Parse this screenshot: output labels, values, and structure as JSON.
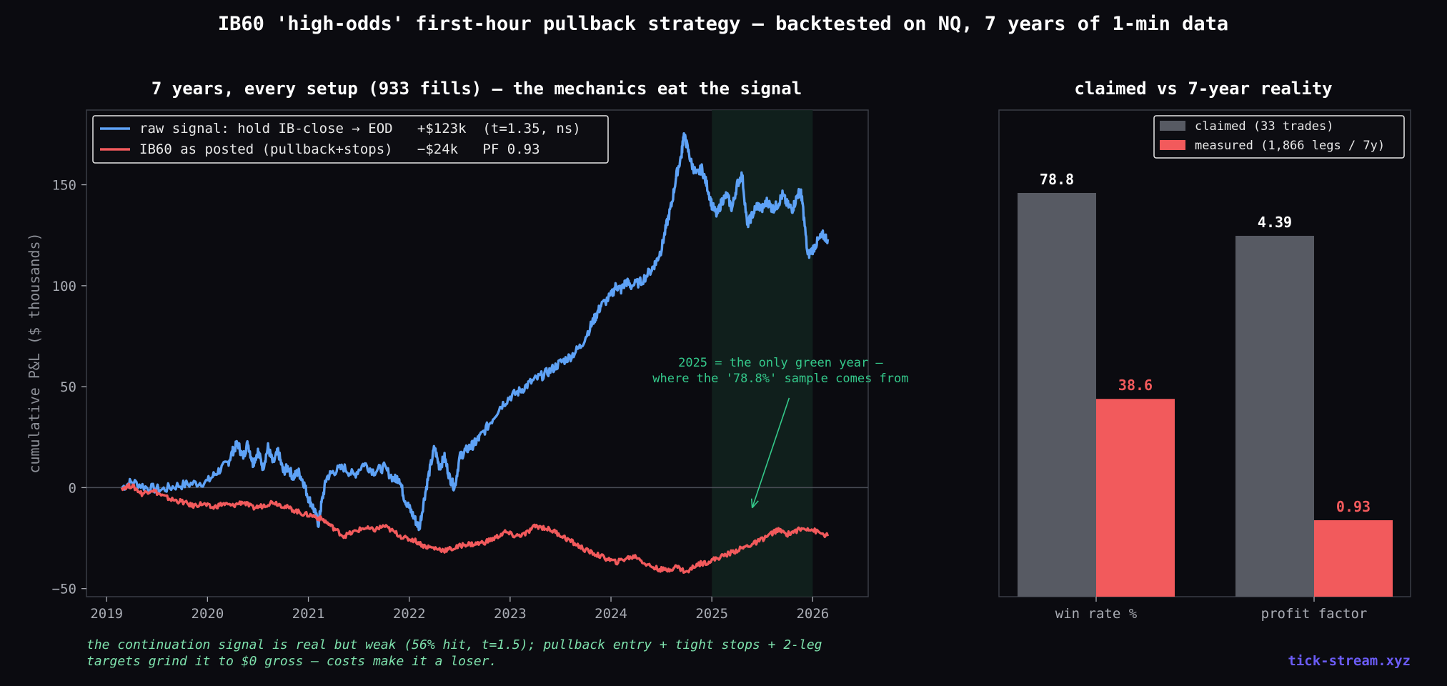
{
  "suptitle": "IB60 'high-odds' first-hour pullback strategy — backtested on NQ, 7 years of 1-min data",
  "footnote": {
    "line1": "the continuation signal is real but weak (56% hit, t=1.5); pullback entry + tight stops + 2-leg",
    "line2": "targets grind it to $0 gross — costs make it a loser."
  },
  "brand": "tick-stream.xyz",
  "chart_data": [
    {
      "type": "line",
      "title": "7 years, every setup (933 fills) — the mechanics eat the signal",
      "ylabel": "cumulative P&L ($ thousands)",
      "xlim": [
        2018.8,
        2026.55
      ],
      "ylim": [
        -54,
        187
      ],
      "xticks": [
        2019,
        2020,
        2021,
        2022,
        2023,
        2024,
        2025,
        2026
      ],
      "yticks": [
        -50,
        0,
        50,
        100,
        150
      ],
      "zero_line": true,
      "legend_position": "upper-left",
      "highlight_span": {
        "x": [
          2025.0,
          2026.0
        ],
        "color": "#12231e"
      },
      "annotation": {
        "lines": [
          "2025 = the only green year —",
          "where the '78.8%' sample comes from"
        ],
        "text_at": [
          2024.3,
          60
        ],
        "arrow_to": [
          2025.4,
          -10
        ]
      },
      "series": [
        {
          "name": "raw signal: hold IB-close → EOD   +$123k  (t=1.35, ns)",
          "color": "#5ea2f6",
          "x": [
            2019.15,
            2019.25,
            2019.4,
            2019.55,
            2019.7,
            2019.85,
            2020.0,
            2020.1,
            2020.2,
            2020.25,
            2020.3,
            2020.35,
            2020.4,
            2020.45,
            2020.5,
            2020.55,
            2020.6,
            2020.65,
            2020.7,
            2020.75,
            2020.8,
            2020.85,
            2020.9,
            2020.95,
            2021.0,
            2021.05,
            2021.1,
            2021.13,
            2021.18,
            2021.25,
            2021.35,
            2021.45,
            2021.55,
            2021.65,
            2021.75,
            2021.85,
            2021.9,
            2021.95,
            2022.0,
            2022.05,
            2022.1,
            2022.15,
            2022.2,
            2022.25,
            2022.3,
            2022.35,
            2022.4,
            2022.45,
            2022.5,
            2022.55,
            2022.6,
            2022.65,
            2022.7,
            2022.8,
            2022.9,
            2023.0,
            2023.1,
            2023.2,
            2023.3,
            2023.4,
            2023.5,
            2023.6,
            2023.7,
            2023.8,
            2023.85,
            2023.9,
            2024.0,
            2024.05,
            2024.1,
            2024.15,
            2024.2,
            2024.3,
            2024.4,
            2024.45,
            2024.5,
            2024.55,
            2024.6,
            2024.65,
            2024.7,
            2024.72,
            2024.75,
            2024.8,
            2024.85,
            2024.9,
            2024.95,
            2025.0,
            2025.05,
            2025.1,
            2025.15,
            2025.2,
            2025.25,
            2025.3,
            2025.35,
            2025.4,
            2025.45,
            2025.5,
            2025.55,
            2025.6,
            2025.65,
            2025.7,
            2025.75,
            2025.8,
            2025.85,
            2025.88,
            2025.9,
            2025.95,
            2026.0,
            2026.05,
            2026.1,
            2026.15
          ],
          "y": [
            0,
            3,
            0,
            -1,
            1,
            2,
            3,
            8,
            12,
            18,
            22,
            15,
            22,
            12,
            18,
            10,
            20,
            12,
            18,
            8,
            10,
            5,
            8,
            3,
            -5,
            -10,
            -18,
            -8,
            5,
            8,
            10,
            6,
            12,
            8,
            10,
            4,
            5,
            -5,
            -10,
            -15,
            -20,
            -5,
            8,
            20,
            10,
            15,
            5,
            0,
            15,
            18,
            20,
            22,
            25,
            32,
            40,
            45,
            48,
            52,
            55,
            58,
            62,
            65,
            70,
            80,
            85,
            90,
            95,
            100,
            98,
            102,
            100,
            102,
            108,
            112,
            118,
            130,
            140,
            155,
            165,
            175,
            170,
            160,
            155,
            158,
            150,
            140,
            135,
            142,
            145,
            138,
            150,
            155,
            130,
            135,
            140,
            138,
            142,
            138,
            140,
            145,
            140,
            138,
            145,
            147,
            140,
            115,
            118,
            122,
            125,
            123
          ]
        },
        {
          "name": "IB60 as posted (pullback+stops)   −$24k   PF 0.93",
          "color": "#f25a5c",
          "x": [
            2019.15,
            2019.25,
            2019.35,
            2019.45,
            2019.55,
            2019.65,
            2019.75,
            2019.85,
            2019.95,
            2020.05,
            2020.15,
            2020.25,
            2020.35,
            2020.45,
            2020.55,
            2020.65,
            2020.75,
            2020.85,
            2020.95,
            2021.05,
            2021.15,
            2021.25,
            2021.35,
            2021.45,
            2021.55,
            2021.65,
            2021.75,
            2021.85,
            2021.95,
            2022.05,
            2022.15,
            2022.25,
            2022.35,
            2022.45,
            2022.55,
            2022.65,
            2022.75,
            2022.85,
            2022.95,
            2023.05,
            2023.15,
            2023.25,
            2023.35,
            2023.45,
            2023.55,
            2023.65,
            2023.75,
            2023.85,
            2023.95,
            2024.05,
            2024.15,
            2024.25,
            2024.35,
            2024.45,
            2024.55,
            2024.65,
            2024.75,
            2024.85,
            2024.95,
            2025.05,
            2025.15,
            2025.25,
            2025.35,
            2025.45,
            2025.55,
            2025.65,
            2025.75,
            2025.85,
            2025.95,
            2026.05,
            2026.15
          ],
          "y": [
            0,
            1,
            -3,
            -1,
            -4,
            -6,
            -7,
            -9,
            -8,
            -10,
            -8,
            -9,
            -7,
            -10,
            -9,
            -7,
            -9,
            -11,
            -13,
            -14,
            -16,
            -20,
            -24,
            -22,
            -20,
            -21,
            -19,
            -22,
            -25,
            -26,
            -29,
            -30,
            -31,
            -30,
            -28,
            -28,
            -27,
            -25,
            -22,
            -24,
            -23,
            -19,
            -20,
            -22,
            -25,
            -28,
            -31,
            -33,
            -35,
            -37,
            -35,
            -34,
            -38,
            -40,
            -41,
            -39,
            -42,
            -38,
            -37,
            -35,
            -33,
            -31,
            -29,
            -27,
            -24,
            -21,
            -23,
            -21,
            -20,
            -22,
            -24
          ]
        }
      ]
    },
    {
      "type": "bar",
      "title": "claimed vs 7-year reality",
      "categories": [
        "win rate %",
        "profit factor"
      ],
      "legend_position": "upper-right",
      "series": [
        {
          "name": "claimed (33 trades)",
          "color": "#575a63",
          "values": [
            78.8,
            4.39
          ],
          "labels": [
            "78.8",
            "4.39"
          ],
          "label_color": "#ffffff"
        },
        {
          "name": "measured (1,866 legs / 7y)",
          "color": "#f25a5c",
          "values": [
            38.6,
            0.93
          ],
          "labels": [
            "38.6",
            "0.93"
          ],
          "label_color": "#f25a5c"
        }
      ],
      "note": "each category has its own implicit scale; bars share the panel height"
    }
  ]
}
